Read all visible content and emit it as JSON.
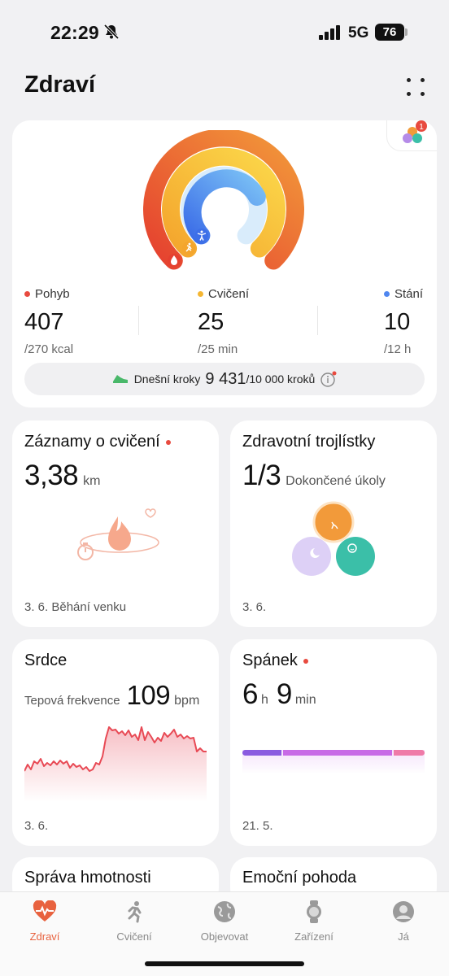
{
  "status": {
    "time": "22:29",
    "network": "5G",
    "battery": "76"
  },
  "header": {
    "title": "Zdraví"
  },
  "activity": {
    "badge_count": "1",
    "stats": [
      {
        "label": "Pohyb",
        "value": "407",
        "target": "/270 kcal",
        "color": "#e84a3f"
      },
      {
        "label": "Cvičení",
        "value": "25",
        "target": "/25 min",
        "color": "#f5b632"
      },
      {
        "label": "Stání",
        "value": "10",
        "target": "/12 h",
        "color": "#4f86ef"
      }
    ],
    "steps": {
      "label": "Dnešní kroky",
      "value": "9 431",
      "target": "/10 000 kroků"
    }
  },
  "tiles": {
    "exercise": {
      "title": "Záznamy o cvičení",
      "value": "3,38",
      "unit": "km",
      "footer": "3. 6. Běhání venku"
    },
    "clover": {
      "title": "Zdravotní trojlístky",
      "value": "1/3",
      "unit": "Dokončené úkoly",
      "footer": "3. 6."
    },
    "heart": {
      "title": "Srdce",
      "label": "Tepová frekvence",
      "value": "109",
      "unit": "bpm",
      "footer": "3. 6."
    },
    "sleep": {
      "title": "Spánek",
      "hours": "6",
      "hours_unit": "h",
      "minutes": "9",
      "minutes_unit": "min",
      "footer": "21. 5."
    },
    "weight": {
      "title": "Správa hmotnosti"
    },
    "emotion": {
      "title": "Emoční pohoda"
    }
  },
  "tabs": [
    {
      "label": "Zdraví",
      "icon": "heart-pulse-icon",
      "active": true
    },
    {
      "label": "Cvičení",
      "icon": "running-icon",
      "active": false
    },
    {
      "label": "Objevovat",
      "icon": "globe-icon",
      "active": false
    },
    {
      "label": "Zařízení",
      "icon": "watch-icon",
      "active": false
    },
    {
      "label": "Já",
      "icon": "profile-icon",
      "active": false
    }
  ],
  "colors": {
    "accent": "#e8623f",
    "move": "#e84a3f",
    "exercise": "#f5b632",
    "stand": "#4f86ef",
    "heart_line": "#e84a55",
    "sleep_bar": "#c86be6"
  }
}
